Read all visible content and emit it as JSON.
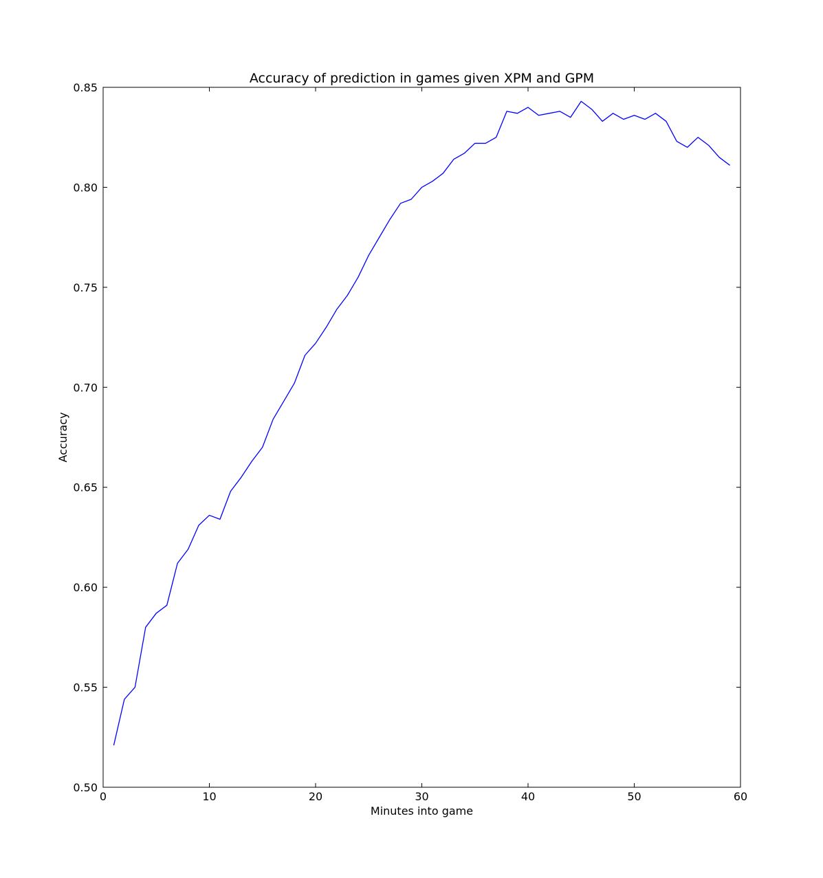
{
  "chart_data": {
    "type": "line",
    "title": "Accuracy of prediction in games given XPM and GPM",
    "xlabel": "Minutes into game",
    "ylabel": "Accuracy",
    "xlim": [
      0,
      60
    ],
    "ylim": [
      0.5,
      0.85
    ],
    "xticks": [
      0,
      10,
      20,
      30,
      40,
      50,
      60
    ],
    "xtick_labels": [
      "0",
      "10",
      "20",
      "30",
      "40",
      "50",
      "60"
    ],
    "yticks": [
      0.5,
      0.55,
      0.6,
      0.65,
      0.7,
      0.75,
      0.8,
      0.85
    ],
    "ytick_labels": [
      "0.50",
      "0.55",
      "0.60",
      "0.65",
      "0.70",
      "0.75",
      "0.80",
      "0.85"
    ],
    "grid": false,
    "legend": "none",
    "line_color": "#0000ff",
    "series": [
      {
        "x": [
          1,
          2,
          3,
          4,
          5,
          6,
          7,
          8,
          9,
          10,
          11,
          12,
          13,
          14,
          15,
          16,
          17,
          18,
          19,
          20,
          21,
          22,
          23,
          24,
          25,
          26,
          27,
          28,
          29,
          30,
          31,
          32,
          33,
          34,
          35,
          36,
          37,
          38,
          39,
          40,
          41,
          42,
          43,
          44,
          45,
          46,
          47,
          48,
          49,
          50,
          51,
          52,
          53,
          54,
          55,
          56,
          57,
          58,
          59
        ],
        "values": [
          0.521,
          0.544,
          0.55,
          0.58,
          0.587,
          0.591,
          0.612,
          0.619,
          0.631,
          0.636,
          0.634,
          0.648,
          0.655,
          0.663,
          0.67,
          0.684,
          0.693,
          0.702,
          0.716,
          0.722,
          0.73,
          0.739,
          0.746,
          0.755,
          0.766,
          0.775,
          0.784,
          0.792,
          0.794,
          0.8,
          0.803,
          0.807,
          0.814,
          0.817,
          0.822,
          0.822,
          0.825,
          0.838,
          0.837,
          0.84,
          0.836,
          0.837,
          0.838,
          0.835,
          0.843,
          0.839,
          0.833,
          0.837,
          0.834,
          0.836,
          0.834,
          0.837,
          0.833,
          0.823,
          0.82,
          0.825,
          0.821,
          0.815,
          0.811
        ]
      }
    ]
  }
}
